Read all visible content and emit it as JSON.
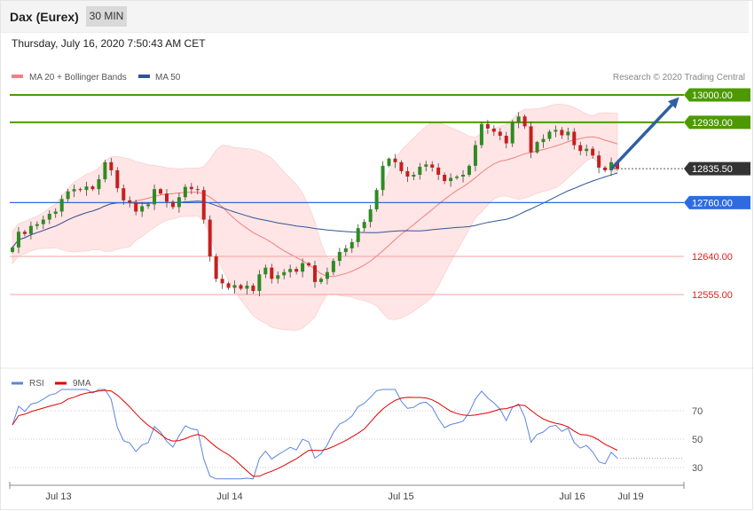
{
  "header": {
    "instrument": "Dax (Eurex)",
    "timeframe": "30 MIN",
    "timestamp": "Thursday, July 16, 2020 7:50:43 AM CET"
  },
  "legend": {
    "ma20_bb": "MA 20 + Bollinger Bands",
    "ma50": "MA 50",
    "copyright": "Research © 2020 Trading Central"
  },
  "colors": {
    "ma20": "#f08080",
    "ma50": "#2f5597",
    "bb_fill": "#ffe0e0",
    "resistance": "#4c9a00",
    "support_blue": "#2f6be0",
    "support_red": "#e02020",
    "candle_up": "#2e8b22",
    "candle_down": "#c81e1e",
    "arrow": "#2f5fa0",
    "rsi": "#5b84e0",
    "rsi_ma": "#e00000"
  },
  "chart_data": [
    {
      "type": "candlestick",
      "levels": [
        {
          "value": 13000.0,
          "label": "13000.00",
          "kind": "resistance"
        },
        {
          "value": 12939.0,
          "label": "12939.00",
          "kind": "resistance"
        },
        {
          "value": 12835.5,
          "label": "12835.50",
          "kind": "last"
        },
        {
          "value": 12760.0,
          "label": "12760.00",
          "kind": "pivot"
        },
        {
          "value": 12640.0,
          "label": "12640.00",
          "kind": "support"
        },
        {
          "value": 12555.0,
          "label": "12555.00",
          "kind": "support"
        }
      ],
      "x_ticks": [
        "Jul 13",
        "Jul 14",
        "Jul 15",
        "Jul 16",
        "Jul 19"
      ],
      "y_range": [
        12440,
        13050
      ],
      "arrow": {
        "from": [
          97,
          12835
        ],
        "to": [
          108,
          12995
        ]
      },
      "closes": [
        12660,
        12695,
        12690,
        12708,
        12712,
        12722,
        12735,
        12740,
        12768,
        12785,
        12790,
        12788,
        12796,
        12790,
        12812,
        12850,
        12832,
        12792,
        12765,
        12760,
        12740,
        12752,
        12756,
        12790,
        12780,
        12762,
        12750,
        12772,
        12795,
        12790,
        12788,
        12722,
        12640,
        12590,
        12580,
        12570,
        12576,
        12568,
        12575,
        12563,
        12600,
        12615,
        12590,
        12598,
        12605,
        12612,
        12606,
        12625,
        12620,
        12583,
        12590,
        12605,
        12630,
        12650,
        12658,
        12672,
        12703,
        12717,
        12745,
        12788,
        12842,
        12858,
        12850,
        12830,
        12818,
        12822,
        12840,
        12845,
        12838,
        12822,
        12808,
        12815,
        12818,
        12822,
        12842,
        12888,
        12935,
        12925,
        12918,
        12909,
        12892,
        12938,
        12952,
        12930,
        12872,
        12895,
        12902,
        12918,
        12922,
        12910,
        12918,
        12888,
        12875,
        12880,
        12865,
        12838,
        12832,
        12850,
        12835
      ]
    },
    {
      "type": "line",
      "title": "RSI",
      "series": [
        {
          "name": "RSI"
        },
        {
          "name": "9MA"
        }
      ],
      "y_ticks": [
        70,
        50,
        30
      ]
    }
  ]
}
